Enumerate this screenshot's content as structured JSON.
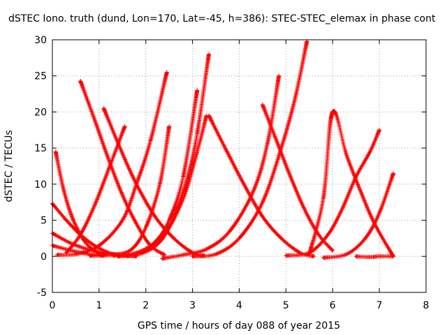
{
  "chart_data": {
    "type": "scatter",
    "title": "dSTEC Iono. truth (dund, Lon=170, Lat=-45, h=386): STEC-STEC_elemax in phase cont",
    "xlabel": "GPS time / hours of day 088 of year 2015",
    "ylabel": "dSTEC  / TECUs",
    "xlim": [
      0,
      8
    ],
    "ylim": [
      -5,
      30
    ],
    "x_ticks": [
      0,
      1,
      2,
      3,
      4,
      5,
      6,
      7,
      8
    ],
    "y_ticks": [
      -5,
      0,
      5,
      10,
      15,
      20,
      25,
      30
    ],
    "grid": true,
    "marker": "+",
    "color": "#ff0000",
    "series": [
      {
        "x": [
          0.07,
          0.25,
          0.45,
          0.7,
          0.95,
          1.15
        ],
        "y": [
          14.5,
          9.0,
          5.0,
          2.0,
          0.6,
          0.2
        ]
      },
      {
        "x": [
          0.6,
          0.9,
          1.2,
          1.5,
          1.8,
          2.1,
          2.4
        ],
        "y": [
          24.3,
          19.0,
          13.5,
          8.5,
          4.5,
          1.5,
          0.2
        ]
      },
      {
        "x": [
          1.1,
          1.45,
          1.8,
          2.2,
          2.6,
          3.0,
          3.25
        ],
        "y": [
          20.5,
          15.0,
          10.0,
          5.5,
          2.5,
          0.5,
          0.1
        ]
      },
      {
        "x": [
          0.0,
          0.3,
          0.6,
          0.9,
          1.2,
          1.4
        ],
        "y": [
          7.3,
          5.0,
          3.0,
          1.5,
          0.5,
          0.2
        ]
      },
      {
        "x": [
          0.0,
          0.4,
          0.8,
          1.2,
          1.6,
          1.8
        ],
        "y": [
          3.2,
          1.8,
          0.9,
          0.4,
          0.1,
          0.0
        ]
      },
      {
        "x": [
          0.0,
          0.4,
          0.8,
          1.1
        ],
        "y": [
          1.5,
          0.8,
          0.3,
          0.1
        ]
      },
      {
        "x": [
          0.3,
          0.6,
          0.9,
          1.2,
          1.55
        ],
        "y": [
          0.5,
          3.0,
          7.0,
          12.0,
          18.0
        ]
      },
      {
        "x": [
          0.1,
          0.5,
          1.0,
          1.5,
          1.8,
          2.1,
          2.45
        ],
        "y": [
          0.2,
          0.3,
          1.5,
          5.0,
          10.0,
          16.0,
          25.5
        ]
      },
      {
        "x": [
          0.8,
          1.3,
          1.7,
          2.0,
          2.3,
          2.5
        ],
        "y": [
          0.1,
          0.2,
          1.0,
          4.0,
          10.0,
          18.0
        ]
      },
      {
        "x": [
          1.3,
          1.8,
          2.2,
          2.5,
          2.8,
          3.1
        ],
        "y": [
          0.1,
          0.5,
          2.0,
          5.0,
          11.0,
          23.0
        ]
      },
      {
        "x": [
          1.4,
          1.9,
          2.3,
          2.6,
          2.9,
          3.1,
          3.35
        ],
        "y": [
          0.0,
          0.4,
          2.0,
          5.5,
          11.0,
          17.0,
          28.0
        ]
      },
      {
        "x": [
          1.6,
          2.0,
          2.4,
          2.8,
          3.1,
          3.3
        ],
        "y": [
          0.0,
          0.8,
          3.0,
          8.0,
          14.5,
          19.5
        ]
      },
      {
        "x": [
          2.35,
          2.8,
          3.3,
          3.8,
          4.3,
          4.6,
          4.85
        ],
        "y": [
          -0.3,
          0.2,
          1.0,
          3.5,
          9.0,
          15.5,
          25.0
        ]
      },
      {
        "x": [
          3.0,
          3.5,
          4.0,
          4.5,
          4.9,
          5.2,
          5.45
        ],
        "y": [
          0.0,
          0.3,
          2.5,
          7.5,
          15.0,
          22.0,
          29.8
        ]
      },
      {
        "x": [
          3.35,
          3.7,
          4.1,
          4.5,
          4.9,
          5.3,
          5.6
        ],
        "y": [
          19.5,
          15.0,
          10.0,
          5.5,
          2.5,
          0.5,
          0.0
        ]
      },
      {
        "x": [
          4.5,
          4.8,
          5.1,
          5.4,
          5.7,
          6.0
        ],
        "y": [
          21.0,
          16.0,
          11.0,
          6.5,
          3.0,
          0.8
        ]
      },
      {
        "x": [
          5.0,
          5.5,
          5.9,
          6.2,
          6.5,
          6.8,
          7.0
        ],
        "y": [
          0.1,
          0.5,
          3.0,
          6.5,
          11.0,
          14.5,
          17.5
        ]
      },
      {
        "x": [
          5.5,
          5.8,
          6.0,
          6.3,
          6.6,
          6.9,
          7.3
        ],
        "y": [
          0.3,
          8.0,
          20.0,
          14.0,
          9.0,
          4.5,
          0.0
        ]
      },
      {
        "x": [
          5.8,
          6.3,
          6.7,
          7.0,
          7.3
        ],
        "y": [
          -0.2,
          0.3,
          2.5,
          6.0,
          11.5
        ]
      },
      {
        "x": [
          6.5,
          6.8,
          7.0,
          7.3
        ],
        "y": [
          0.0,
          -0.1,
          0.0,
          0.0
        ]
      }
    ]
  }
}
